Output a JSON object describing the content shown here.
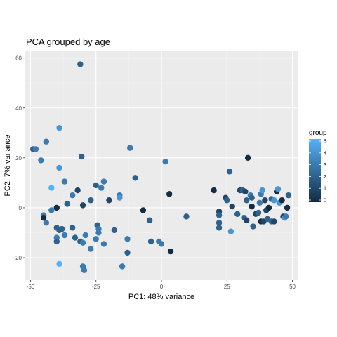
{
  "chart_data": {
    "type": "scatter",
    "title": "PCA grouped by age",
    "xlabel": "PC1: 48% variance",
    "ylabel": "PC2: 7% variance",
    "xlim": [
      -52,
      52
    ],
    "ylim": [
      -29,
      63
    ],
    "x_ticks": [
      -50,
      -25,
      0,
      25,
      50
    ],
    "x_tick_labels": [
      "-50",
      "-25",
      "0",
      "25",
      "50"
    ],
    "y_ticks": [
      -20,
      0,
      20,
      40,
      60
    ],
    "y_tick_labels": [
      "-20",
      "0",
      "20",
      "40",
      "60"
    ],
    "grid": true,
    "legend": {
      "title": "group",
      "placement": "right",
      "type": "colorbar",
      "min": 0,
      "max": 5,
      "ticks": [
        "0",
        "1",
        "2",
        "3",
        "4",
        "5"
      ],
      "low_color": "#132B43",
      "high_color": "#56B1F7"
    },
    "colors": {
      "panel_background": "#EBEBEB",
      "grid_major": "#FFFFFF",
      "grid_minor": "#F2F2F2"
    },
    "points": [
      {
        "x": -31,
        "y": 57.5,
        "group": 2
      },
      {
        "x": -39,
        "y": 32,
        "group": 4
      },
      {
        "x": -49,
        "y": 23.5,
        "group": 2
      },
      {
        "x": -48,
        "y": 23.5,
        "group": 3
      },
      {
        "x": -44,
        "y": 26.5,
        "group": 3
      },
      {
        "x": -46,
        "y": 19,
        "group": 3
      },
      {
        "x": -30.5,
        "y": 20.5,
        "group": 2
      },
      {
        "x": -12,
        "y": 24,
        "group": 3
      },
      {
        "x": -39,
        "y": 16,
        "group": 4
      },
      {
        "x": -37,
        "y": 10.5,
        "group": 3
      },
      {
        "x": -42,
        "y": 8,
        "group": 5
      },
      {
        "x": -34,
        "y": 5,
        "group": 3
      },
      {
        "x": -32,
        "y": 7,
        "group": 1
      },
      {
        "x": -25,
        "y": 9,
        "group": 2
      },
      {
        "x": -22,
        "y": 10.5,
        "group": 3
      },
      {
        "x": -23,
        "y": 8,
        "group": 3
      },
      {
        "x": -27,
        "y": 3,
        "group": 2
      },
      {
        "x": -30,
        "y": 1,
        "group": 1
      },
      {
        "x": -36,
        "y": 1.5,
        "group": 2
      },
      {
        "x": -40,
        "y": 0,
        "group": 0
      },
      {
        "x": -42,
        "y": -1,
        "group": 3
      },
      {
        "x": -45,
        "y": -3,
        "group": 3
      },
      {
        "x": -45,
        "y": -4,
        "group": 0
      },
      {
        "x": -44,
        "y": -6,
        "group": 3
      },
      {
        "x": -40,
        "y": -8,
        "group": 2
      },
      {
        "x": -38,
        "y": -8.5,
        "group": 2
      },
      {
        "x": -39,
        "y": -9,
        "group": 2
      },
      {
        "x": -34,
        "y": -8,
        "group": 2
      },
      {
        "x": -37,
        "y": -11,
        "group": 3
      },
      {
        "x": -40,
        "y": -12,
        "group": 3
      },
      {
        "x": -40,
        "y": -13.5,
        "group": 2
      },
      {
        "x": -33,
        "y": -12,
        "group": 2
      },
      {
        "x": -29,
        "y": -11,
        "group": 3
      },
      {
        "x": -31,
        "y": -13.5,
        "group": 2
      },
      {
        "x": -30,
        "y": -14,
        "group": 3
      },
      {
        "x": -27,
        "y": -16.5,
        "group": 3
      },
      {
        "x": -24.5,
        "y": -7,
        "group": 2
      },
      {
        "x": -24,
        "y": -8.5,
        "group": 3
      },
      {
        "x": -24,
        "y": -10,
        "group": 3
      },
      {
        "x": -25,
        "y": -12.5,
        "group": 3
      },
      {
        "x": -22,
        "y": -14.5,
        "group": 3
      },
      {
        "x": -18,
        "y": -9,
        "group": 2
      },
      {
        "x": -13,
        "y": -12.5,
        "group": 3
      },
      {
        "x": -13,
        "y": -18,
        "group": 2
      },
      {
        "x": -15,
        "y": -23.5,
        "group": 3
      },
      {
        "x": -30,
        "y": -23.5,
        "group": 3
      },
      {
        "x": -29.5,
        "y": -25,
        "group": 3
      },
      {
        "x": -39,
        "y": -22.5,
        "group": 5
      },
      {
        "x": -16,
        "y": 5,
        "group": 3
      },
      {
        "x": -16,
        "y": 4,
        "group": 4
      },
      {
        "x": -20,
        "y": 3,
        "group": 1
      },
      {
        "x": -10,
        "y": 12,
        "group": 2
      },
      {
        "x": 1.5,
        "y": 18.5,
        "group": 3
      },
      {
        "x": 3,
        "y": 5.5,
        "group": 0
      },
      {
        "x": -7,
        "y": -1,
        "group": 0
      },
      {
        "x": -4.5,
        "y": -5,
        "group": 2
      },
      {
        "x": -4,
        "y": -13.5,
        "group": 2
      },
      {
        "x": -1,
        "y": -13.5,
        "group": 3
      },
      {
        "x": 0,
        "y": -14.5,
        "group": 3
      },
      {
        "x": 3.5,
        "y": -17.5,
        "group": 0
      },
      {
        "x": 9.5,
        "y": -3.5,
        "group": 2
      },
      {
        "x": 20,
        "y": 7,
        "group": 0
      },
      {
        "x": 22,
        "y": -1.5,
        "group": 1
      },
      {
        "x": 22,
        "y": -3,
        "group": 2
      },
      {
        "x": 22,
        "y": -6,
        "group": 2
      },
      {
        "x": 22,
        "y": -8,
        "group": 2
      },
      {
        "x": 24.5,
        "y": 4,
        "group": 1
      },
      {
        "x": 25,
        "y": 3,
        "group": 2
      },
      {
        "x": 26,
        "y": 14.5,
        "group": 2
      },
      {
        "x": 26.5,
        "y": -9.5,
        "group": 4
      },
      {
        "x": 27,
        "y": 0.5,
        "group": 1
      },
      {
        "x": 29,
        "y": -2.5,
        "group": 2
      },
      {
        "x": 30,
        "y": 7,
        "group": 1
      },
      {
        "x": 31,
        "y": 7,
        "group": 2
      },
      {
        "x": 31.5,
        "y": -4,
        "group": 2
      },
      {
        "x": 32,
        "y": 6.5,
        "group": 1
      },
      {
        "x": 32.5,
        "y": 3,
        "group": 2
      },
      {
        "x": 32.5,
        "y": -5,
        "group": 1
      },
      {
        "x": 33,
        "y": 20,
        "group": 0
      },
      {
        "x": 34,
        "y": 5,
        "group": 3
      },
      {
        "x": 34.5,
        "y": 4,
        "group": 2
      },
      {
        "x": 34.5,
        "y": 0.5,
        "group": 0
      },
      {
        "x": 35,
        "y": -7.5,
        "group": 2
      },
      {
        "x": 36,
        "y": -2.5,
        "group": 1
      },
      {
        "x": 37,
        "y": -2,
        "group": 2
      },
      {
        "x": 37.5,
        "y": 2,
        "group": 3
      },
      {
        "x": 38,
        "y": 5.5,
        "group": 3
      },
      {
        "x": 38.5,
        "y": 7,
        "group": 4
      },
      {
        "x": 38,
        "y": -5.5,
        "group": 0
      },
      {
        "x": 39,
        "y": -5.5,
        "group": 1
      },
      {
        "x": 39.5,
        "y": 3,
        "group": 1
      },
      {
        "x": 40,
        "y": -1,
        "group": 1
      },
      {
        "x": 40.5,
        "y": -4.5,
        "group": 2
      },
      {
        "x": 41,
        "y": 0,
        "group": 0
      },
      {
        "x": 42,
        "y": 3.5,
        "group": 2
      },
      {
        "x": 42,
        "y": -5.5,
        "group": 2
      },
      {
        "x": 43,
        "y": 3,
        "group": 4
      },
      {
        "x": 43,
        "y": -5.5,
        "group": 1
      },
      {
        "x": 44,
        "y": 6.5,
        "group": 0
      },
      {
        "x": 44.5,
        "y": 7.5,
        "group": 4
      },
      {
        "x": 45,
        "y": 2,
        "group": 4
      },
      {
        "x": 46,
        "y": 3,
        "group": 0
      },
      {
        "x": 46.5,
        "y": -3.5,
        "group": 1
      },
      {
        "x": 47,
        "y": -4,
        "group": 4
      },
      {
        "x": 47.5,
        "y": -3.5,
        "group": 3
      },
      {
        "x": 48,
        "y": 0,
        "group": 0
      },
      {
        "x": 48.5,
        "y": 5,
        "group": 2
      }
    ]
  }
}
